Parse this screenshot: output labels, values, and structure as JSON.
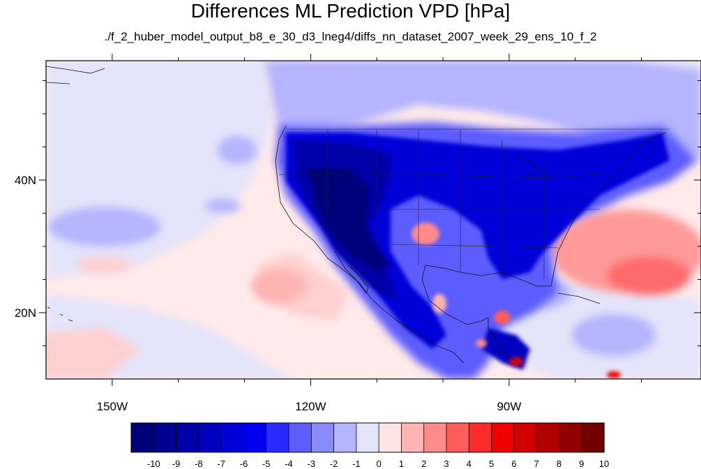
{
  "figure": {
    "title": "Differences ML Prediction VPD [hPa]",
    "subtitle": "./f_2_huber_model_output_b8_e_30_d3_lneg4/diffs_nn_dataset_2007_week_29_ens_10_f_2"
  },
  "map": {
    "lon_range": [
      -160,
      -61
    ],
    "lat_range": [
      10,
      58
    ],
    "lon_labels": [
      {
        "lon": -150,
        "text": "150W"
      },
      {
        "lon": -120,
        "text": "120W"
      },
      {
        "lon": -90,
        "text": "90W"
      }
    ],
    "lat_labels": [
      {
        "lat": 40,
        "text": "40N"
      },
      {
        "lat": 20,
        "text": "20N"
      }
    ],
    "minor_lon_ticks": [
      -140,
      -130,
      -110,
      -100,
      -80,
      -70
    ],
    "minor_lat_ticks": [
      15,
      25,
      30,
      35,
      45,
      50,
      55
    ]
  },
  "colorbar": {
    "labels": [
      "-10",
      "-9",
      "-8",
      "-7",
      "-6",
      "-5",
      "-4",
      "-3",
      "-2",
      "-1",
      "0",
      "1",
      "2",
      "3",
      "4",
      "5",
      "6",
      "7",
      "8",
      "9",
      "10"
    ],
    "colors": [
      "#00007a",
      "#00008f",
      "#0000a8",
      "#0000c0",
      "#0000d8",
      "#0000f0",
      "#2a2aff",
      "#5c5cff",
      "#8a8aff",
      "#b4b4ff",
      "#e4e4fa",
      "#ffe4e4",
      "#ffb4b4",
      "#ff8a8a",
      "#ff5c5c",
      "#ff2a2a",
      "#f20000",
      "#d20000",
      "#b20000",
      "#930000",
      "#700000"
    ]
  }
}
